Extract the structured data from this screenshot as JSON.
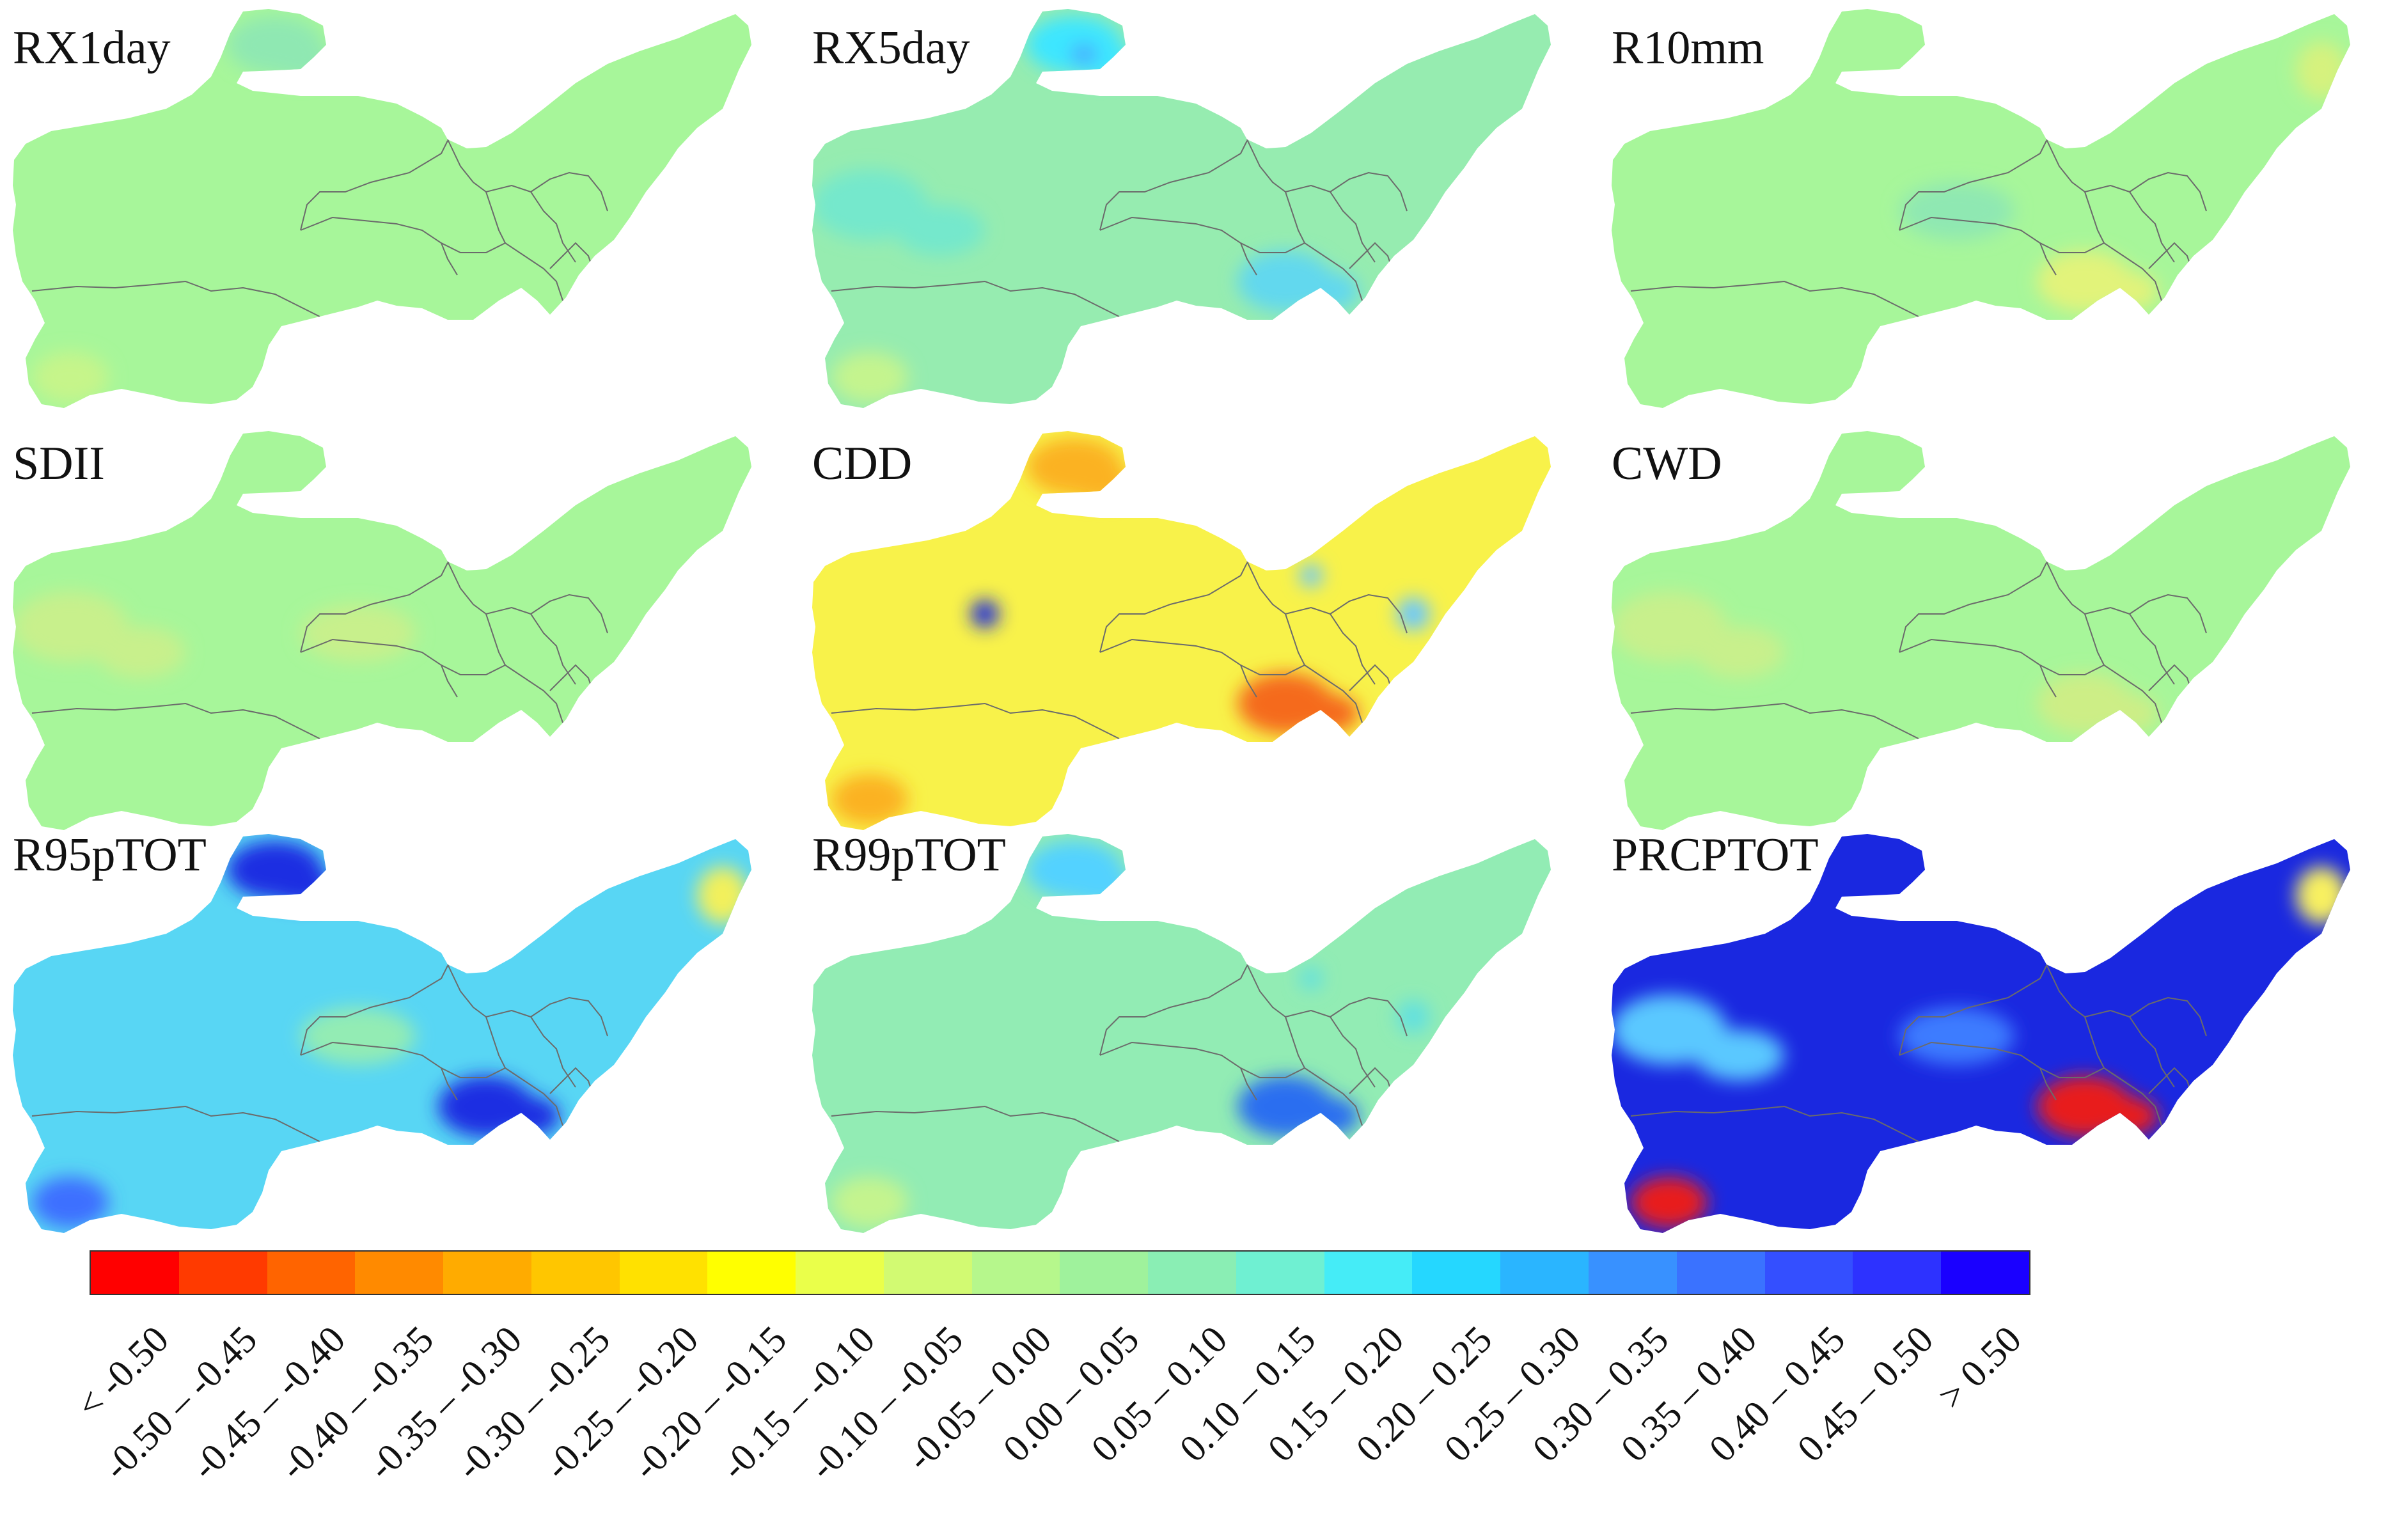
{
  "panels": [
    {
      "label": "RX1day",
      "fill": "#a7f69a",
      "blobs": [
        {
          "c": "#8fe8b2",
          "k": "north"
        },
        {
          "c": "#c6f58a",
          "k": "sw"
        }
      ]
    },
    {
      "label": "RX5day",
      "fill": "#96ecb0",
      "blobs": [
        {
          "c": "#3ee6ff",
          "k": "north"
        },
        {
          "c": "#4aa4ff",
          "k": "northcore"
        },
        {
          "c": "#74e8cc",
          "k": "west"
        },
        {
          "c": "#62d8ee",
          "k": "southeast"
        },
        {
          "c": "#c4f48e",
          "k": "sw"
        }
      ]
    },
    {
      "label": "R10mm",
      "fill": "#a7f69a",
      "blobs": [
        {
          "c": "#8fe8b2",
          "k": "center"
        },
        {
          "c": "#e2f37a",
          "k": "southeast"
        },
        {
          "c": "#d6f27e",
          "k": "northeast"
        }
      ]
    },
    {
      "label": "SDII",
      "fill": "#a7f69a",
      "blobs": [
        {
          "c": "#c8f08c",
          "k": "center"
        },
        {
          "c": "#c8f08c",
          "k": "west"
        }
      ]
    },
    {
      "label": "CDD",
      "fill": "#f8f24a",
      "blobs": [
        {
          "c": "#fbb224",
          "k": "north"
        },
        {
          "c": "#1d2bdf",
          "k": "westcore"
        },
        {
          "c": "#f56a1a",
          "k": "southeast"
        },
        {
          "c": "#6ac8ff",
          "k": "east"
        },
        {
          "c": "#fbb224",
          "k": "sw"
        }
      ]
    },
    {
      "label": "CWD",
      "fill": "#a7f69a",
      "blobs": [
        {
          "c": "#c8f08c",
          "k": "west"
        },
        {
          "c": "#cdee86",
          "k": "southeast"
        }
      ]
    },
    {
      "label": "R95pTOT",
      "fill": "#58d6f4",
      "blobs": [
        {
          "c": "#1b2ee2",
          "k": "north"
        },
        {
          "c": "#1b2ee2",
          "k": "southeast"
        },
        {
          "c": "#3e70ff",
          "k": "sw"
        },
        {
          "c": "#93ecb4",
          "k": "center"
        },
        {
          "c": "#f2f05c",
          "k": "northeast"
        }
      ]
    },
    {
      "label": "R99pTOT",
      "fill": "#92ecb4",
      "blobs": [
        {
          "c": "#52d2ff",
          "k": "north"
        },
        {
          "c": "#2a6ef0",
          "k": "southeast"
        },
        {
          "c": "#c4f48e",
          "k": "sw"
        },
        {
          "c": "#62e0e0",
          "k": "east"
        }
      ]
    },
    {
      "label": "PRCPTOT",
      "fill": "#1a28e0",
      "blobs": [
        {
          "c": "#3e7cff",
          "k": "center"
        },
        {
          "c": "#f8f060",
          "k": "northeast"
        },
        {
          "c": "#e81c1c",
          "k": "southeast"
        },
        {
          "c": "#e81c1c",
          "k": "sw"
        },
        {
          "c": "#5ac8ff",
          "k": "west"
        }
      ]
    }
  ],
  "legend": {
    "colors": [
      "#ff0000",
      "#ff3a00",
      "#ff6400",
      "#ff8a00",
      "#ffab00",
      "#ffc600",
      "#ffe100",
      "#ffff00",
      "#eaff4a",
      "#d2fa72",
      "#b6f78c",
      "#9ff29c",
      "#8aeeb4",
      "#6ff0d2",
      "#45ecf7",
      "#25d7ff",
      "#2ab5ff",
      "#3891ff",
      "#3a72ff",
      "#344fff",
      "#2d32ff",
      "#1a00ff"
    ],
    "labels": [
      "< -0.50",
      "-0.50 – -0.45",
      "-0.45 – -0.40",
      "-0.40 – -0.35",
      "-0.35 – -0.30",
      "-0.30 – -0.25",
      "-0.25 – -0.20",
      "-0.20 – -0.15",
      "-0.15 – -0.10",
      "-0.10 – -0.05",
      "-0.05 – 0.00",
      "0.00 – 0.05",
      "0.05 – 0.10",
      "0.10 – 0.15",
      "0.15 – 0.20",
      "0.20 – 0.25",
      "0.25 – 0.30",
      "0.30 – 0.35",
      "0.35 – 0.40",
      "0.40 – 0.45",
      "0.45 – 0.50",
      "> 0.50"
    ]
  }
}
